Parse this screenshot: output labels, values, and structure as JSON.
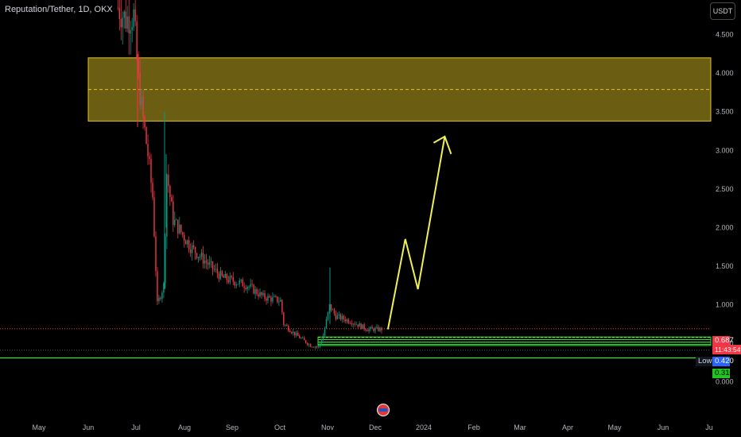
{
  "header": {
    "title": "Reputation/Tether, 1D, OKX",
    "currency_button": "USDT"
  },
  "colors": {
    "up": "#089981",
    "down": "#f23645",
    "zone_fill": "#6b5e13",
    "zone_border": "#e5c02a",
    "arrow": "#f0f05a",
    "support": "#2ee62e",
    "axis_text": "#b2b5be"
  },
  "price_axis": {
    "ticks": [
      "4.500",
      "4.000",
      "3.500",
      "3.000",
      "2.500",
      "2.000",
      "1.500",
      "1.000",
      "0.500",
      "0.000"
    ]
  },
  "time_axis": {
    "ticks": [
      "May",
      "Jun",
      "Jul",
      "Aug",
      "Sep",
      "Oct",
      "Nov",
      "Dec",
      "2024",
      "Feb",
      "Mar",
      "Apr",
      "May",
      "Jun",
      "Ju"
    ]
  },
  "price_tags": {
    "last_price": "0.687",
    "countdown": "11:43:54",
    "low_label": "Low",
    "low_value": "0.420",
    "support_value": "0.310"
  },
  "chart_data": {
    "type": "candlestick",
    "title": "Reputation/Tether, 1D, OKX",
    "ylim": [
      -0.15,
      4.95
    ],
    "y_axis_side": "right",
    "grid": false,
    "series": [
      {
        "name": "price",
        "points": [
          [
            "Jun 20",
            4.85
          ],
          [
            "Jun 25",
            4.7
          ],
          [
            "Jun 30",
            4.75
          ],
          [
            "Jul 3",
            3.9
          ],
          [
            "Jul 6",
            3.4
          ],
          [
            "Jul 9",
            2.95
          ],
          [
            "Jul 12",
            2.4
          ],
          [
            "Jul 15",
            1.0
          ],
          [
            "Jul 19",
            1.25
          ],
          [
            "Jul 21",
            2.7
          ],
          [
            "Jul 25",
            2.1
          ],
          [
            "Aug 5",
            1.75
          ],
          [
            "Aug 15",
            1.55
          ],
          [
            "Aug 25",
            1.35
          ],
          [
            "Sep 10",
            1.25
          ],
          [
            "Sep 20",
            1.1
          ],
          [
            "Oct 1",
            1.05
          ],
          [
            "Oct 3",
            0.75
          ],
          [
            "Oct 10",
            0.62
          ],
          [
            "Oct 20",
            0.47
          ],
          [
            "Oct 25",
            0.45
          ],
          [
            "Oct 28",
            0.6
          ],
          [
            "Nov 1",
            0.98
          ],
          [
            "Nov 5",
            0.85
          ],
          [
            "Nov 15",
            0.78
          ],
          [
            "Nov 25",
            0.68
          ],
          [
            "Dec 5",
            0.68
          ]
        ]
      }
    ],
    "target_zone": {
      "low": 3.38,
      "high": 4.2,
      "mid": 3.79,
      "start": "Jun 1",
      "end": "Jul 2024"
    },
    "projection_arrow": [
      [
        "Dec 8",
        0.68
      ],
      [
        "Dec 19",
        1.85
      ],
      [
        "Dec 27",
        1.2
      ],
      [
        "Jan 13",
        3.18
      ]
    ],
    "levels": {
      "last": 0.687,
      "low": 0.42,
      "support": 0.31
    }
  }
}
